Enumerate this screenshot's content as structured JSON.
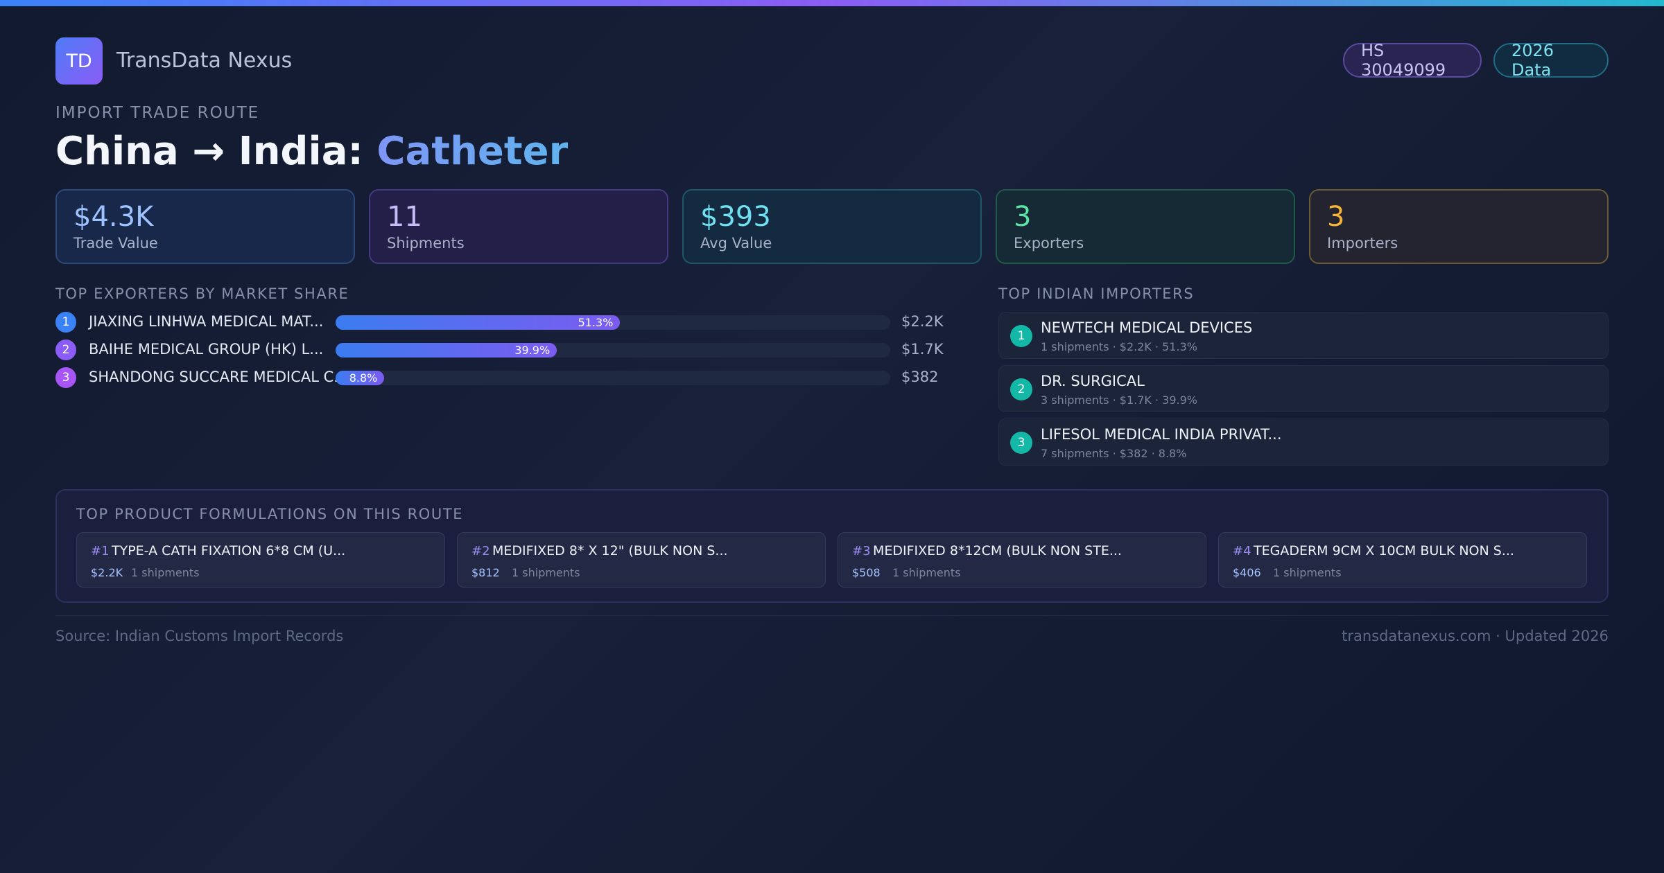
{
  "brand": {
    "logo_text": "TD",
    "name": "TransData Nexus"
  },
  "badges": {
    "hs_code": "HS 30049099",
    "year": "2026 Data"
  },
  "route": {
    "eyebrow": "IMPORT TRADE ROUTE",
    "title_prefix": "China → India: ",
    "title_product": "Catheter"
  },
  "stats": [
    {
      "value": "$4.3K",
      "label": "Trade Value"
    },
    {
      "value": "11",
      "label": "Shipments"
    },
    {
      "value": "$393",
      "label": "Avg Value"
    },
    {
      "value": "3",
      "label": "Exporters"
    },
    {
      "value": "3",
      "label": "Importers"
    }
  ],
  "exporters": {
    "heading": "TOP EXPORTERS BY MARKET SHARE",
    "items": [
      {
        "rank": "1",
        "name": "JIAXING LINHWA MEDICAL MAT...",
        "share": 51.3,
        "share_label": "51.3%",
        "value": "$2.2K",
        "color": "#3b82f6"
      },
      {
        "rank": "2",
        "name": "BAIHE MEDICAL GROUP (HK) L...",
        "share": 39.9,
        "share_label": "39.9%",
        "value": "$1.7K",
        "color": "#8b5cf6"
      },
      {
        "rank": "3",
        "name": "SHANDONG SUCCARE MEDICAL C...",
        "share": 8.8,
        "share_label": "8.8%",
        "value": "$382",
        "color": "#a855f7"
      }
    ]
  },
  "importers": {
    "heading": "TOP INDIAN IMPORTERS",
    "items": [
      {
        "rank": "1",
        "name": "NEWTECH MEDICAL DEVICES",
        "meta": "1 shipments · $2.2K · 51.3%"
      },
      {
        "rank": "2",
        "name": "DR. SURGICAL",
        "meta": "3 shipments · $1.7K · 39.9%"
      },
      {
        "rank": "3",
        "name": "LIFESOL MEDICAL INDIA PRIVAT...",
        "meta": "7 shipments · $382 · 8.8%"
      }
    ]
  },
  "formulations": {
    "heading": "TOP PRODUCT FORMULATIONS ON THIS ROUTE",
    "items": [
      {
        "rank": "#1",
        "name": "TYPE-A CATH FIXATION 6*8 CM (U...",
        "value": "$2.2K",
        "shipments": "1 shipments"
      },
      {
        "rank": "#2",
        "name": "MEDIFIXED 8* X 12\" (BULK NON S...",
        "value": "$812",
        "shipments": "1 shipments"
      },
      {
        "rank": "#3",
        "name": "MEDIFIXED 8*12CM (BULK NON STE...",
        "value": "$508",
        "shipments": "1 shipments"
      },
      {
        "rank": "#4",
        "name": "TEGADERM 9CM X 10CM BULK NON S...",
        "value": "$406",
        "shipments": "1 shipments"
      }
    ]
  },
  "footer": {
    "source": "Source: Indian Customs Import Records",
    "site": "transdatanexus.com · Updated 2026"
  }
}
